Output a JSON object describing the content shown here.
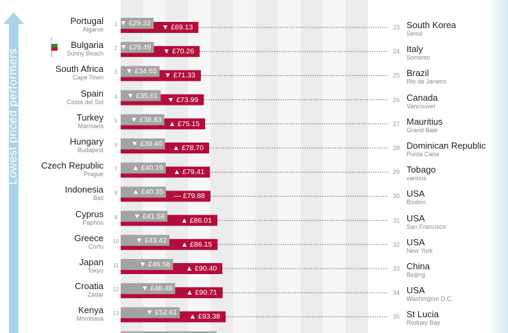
{
  "arrow_label": "Lowest priced performers",
  "colors": {
    "gray_bar": "#a3a3a3",
    "red_bar": "#b30d3a",
    "arrow_blue": "#a9d3ea",
    "band_dark": "#ececec",
    "band_light": "#f6f6f6"
  },
  "chart_data": {
    "type": "bar",
    "orientation": "horizontal",
    "title": "",
    "xlabel": "",
    "ylabel": "",
    "currency": "£",
    "xlim": [
      0,
      440
    ],
    "rows": [
      {
        "rank_left": "1",
        "country": "Portugal",
        "city": "Algarve",
        "gray_value": 29.32,
        "gray_label": "£29.32",
        "gray_trend": "down",
        "red_value": 69.13,
        "red_label": "£69.13",
        "red_trend": "down",
        "rank_right": "23",
        "right_country": "South Korea",
        "right_city": "Seoul"
      },
      {
        "rank_left": "2",
        "country": "Bulgaria",
        "city": "Sunny Beach",
        "gray_value": 29.49,
        "gray_label": "£29.49",
        "gray_trend": "down",
        "red_value": 70.26,
        "red_label": "£70.26",
        "red_trend": "down",
        "rank_right": "24",
        "right_country": "Italy",
        "right_city": "Sorrento"
      },
      {
        "rank_left": "3",
        "country": "South Africa",
        "city": "Cape Town",
        "gray_value": 34.55,
        "gray_label": "£34.55",
        "gray_trend": "down",
        "red_value": 71.33,
        "red_label": "£71.33",
        "red_trend": "down",
        "rank_right": "25",
        "right_country": "Brazil",
        "right_city": "Rio de Janeiro"
      },
      {
        "rank_left": "4",
        "country": "Spain",
        "city": "Costa del Sol",
        "gray_value": 35.61,
        "gray_label": "£35.61",
        "gray_trend": "down",
        "red_value": 73.99,
        "red_label": "£73.99",
        "red_trend": "down",
        "rank_right": "26",
        "right_country": "Canada",
        "right_city": "Vancouver"
      },
      {
        "rank_left": "5",
        "country": "Turkey",
        "city": "Marmaris",
        "gray_value": 38.83,
        "gray_label": "£38.83",
        "gray_trend": "down",
        "red_value": 75.15,
        "red_label": "£75.15",
        "red_trend": "up",
        "rank_right": "27",
        "right_country": "Mauritius",
        "right_city": "Grand Baie"
      },
      {
        "rank_left": "6",
        "country": "Hungary",
        "city": "Budapest",
        "gray_value": 39.4,
        "gray_label": "£39.40",
        "gray_trend": "down",
        "red_value": 78.7,
        "red_label": "£78.70",
        "red_trend": "up",
        "rank_right": "28",
        "right_country": "Dominican Republic",
        "right_city": "Punta Cana"
      },
      {
        "rank_left": "7",
        "country": "Czech Republic",
        "city": "Prague",
        "gray_value": 40.19,
        "gray_label": "£40.19",
        "gray_trend": "up",
        "red_value": 79.41,
        "red_label": "£79.41",
        "red_trend": "up",
        "rank_right": "29",
        "right_country": "Tobago",
        "right_city": "various"
      },
      {
        "rank_left": "8",
        "country": "Indonesia",
        "city": "Bali",
        "gray_value": 40.35,
        "gray_label": "£40.35",
        "gray_trend": "up",
        "red_value": 79.88,
        "red_label": "£79.88",
        "red_trend": "same",
        "rank_right": "30",
        "right_country": "USA",
        "right_city": "Boston"
      },
      {
        "rank_left": "9",
        "country": "Cyprus",
        "city": "Paphos",
        "gray_value": 41.58,
        "gray_label": "£41.58",
        "gray_trend": "down",
        "red_value": 86.01,
        "red_label": "£86.01",
        "red_trend": "up",
        "rank_right": "31",
        "right_country": "USA",
        "right_city": "San Francisco"
      },
      {
        "rank_left": "10",
        "country": "Greece",
        "city": "Corfu",
        "gray_value": 43.42,
        "gray_label": "£43.42",
        "gray_trend": "down",
        "red_value": 86.15,
        "red_label": "£86.15",
        "red_trend": "up",
        "rank_right": "32",
        "right_country": "USA",
        "right_city": "New York"
      },
      {
        "rank_left": "11",
        "country": "Japan",
        "city": "Tokyo",
        "gray_value": 46.58,
        "gray_label": "£46.58",
        "gray_trend": "down",
        "red_value": 90.4,
        "red_label": "£90.40",
        "red_trend": "up",
        "rank_right": "33",
        "right_country": "China",
        "right_city": "Beijing"
      },
      {
        "rank_left": "12",
        "country": "Croatia",
        "city": "Zadar",
        "gray_value": 48.48,
        "gray_label": "£48.48",
        "gray_trend": "down",
        "red_value": 90.71,
        "red_label": "£90.71",
        "red_trend": "up",
        "rank_right": "34",
        "right_country": "USA",
        "right_city": "Washington D.C."
      },
      {
        "rank_left": "13",
        "country": "Kenya",
        "city": "Mombasa",
        "gray_value": 52.61,
        "gray_label": "£52.61",
        "gray_trend": "down",
        "red_value": 93.38,
        "red_label": "£93.38",
        "red_trend": "up",
        "rank_right": "35",
        "right_country": "St Lucia",
        "right_city": "Rodney Bay"
      }
    ]
  }
}
